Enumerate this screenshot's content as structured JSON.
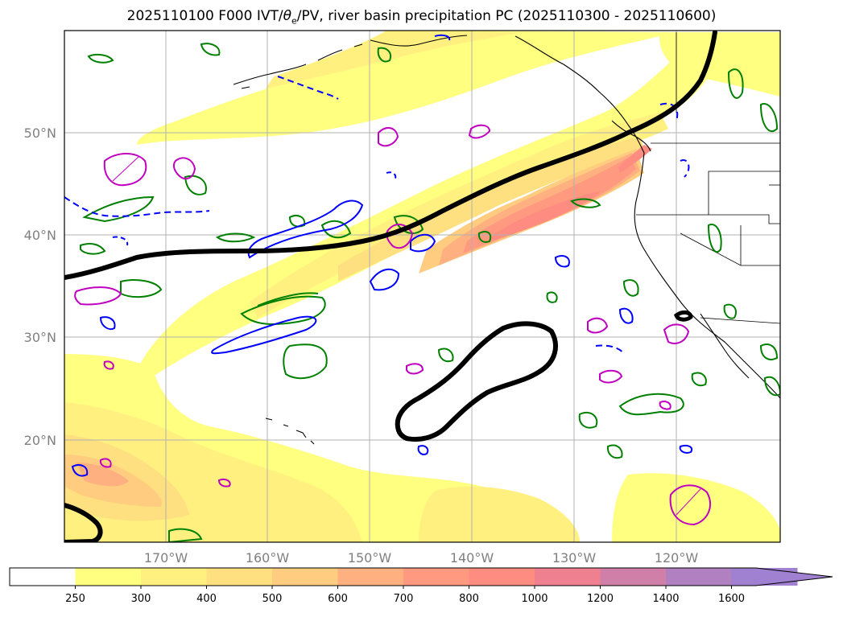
{
  "title": {
    "prefix": "2025110100 F000 IVT/",
    "theta": "θ",
    "theta_sub": "e",
    "suffix": "/PV, river basin precipitation PC (2025110300 - 2025110600)"
  },
  "map": {
    "lat_labels": [
      "50°N",
      "40°N",
      "30°N",
      "20°N"
    ],
    "lon_labels": [
      "170°W",
      "160°W",
      "150°W",
      "140°W",
      "130°W",
      "120°W"
    ],
    "colors": {
      "land_outline": "#000000",
      "black_contour": "#000000",
      "magenta_contour": "#c000c0",
      "blue_contour": "#0000ff",
      "green_contour": "#008000",
      "grid": "#b0b0b0"
    }
  },
  "colorbar": {
    "ticks": [
      "250",
      "300",
      "400",
      "500",
      "600",
      "700",
      "800",
      "1000",
      "1200",
      "1400",
      "1600"
    ],
    "colors": [
      "#ffffff",
      "#ffff80",
      "#fff080",
      "#ffe080",
      "#ffcc80",
      "#ffb080",
      "#ff9a80",
      "#ff8c80",
      "#ee8090",
      "#d080a8",
      "#b080c0",
      "#a080d0"
    ],
    "extend": "max"
  }
}
